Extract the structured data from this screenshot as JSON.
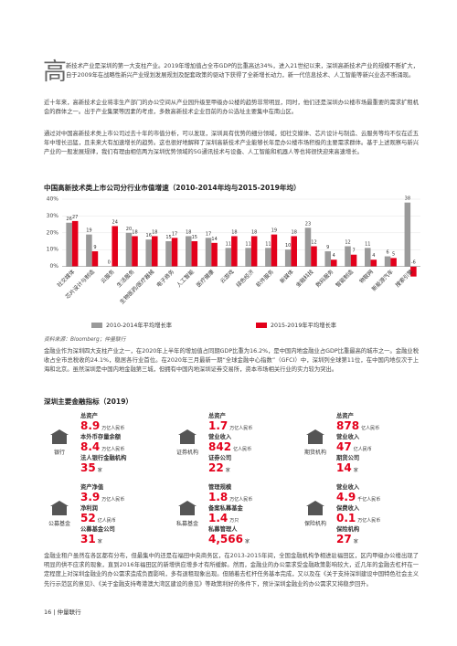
{
  "intro": {
    "drop_cap": "高",
    "paragraphs": [
      "新技术产业是深圳的第一大支柱产业。2019年增加值占全市GDP的比重高达34%，进入21世纪以来，深圳高新技术产业的规模不断扩大，自于2009年在战略性新兴产业规划发展规划及配套政策的驱动下获得了全新增长动力，新一代信息技术、人工智能等新兴业态不断涌现。",
      "近十年来，高新技术企业将非生产部门的办公空间从产业园升级至甲级办公楼的趋势非常明显，同时，他们还是深圳办公楼市场最重要的需求扩租机会的群体之一。出于产业集聚等因素的考虑，多数高新技术企业目前的办公选址主要集中在南山区。",
      "通过对中国高新技术类上市公司过去十年的市值分析，可以发现，深圳具有优势的细分领域，如社交媒体、芯片设计与制造、云服务等均不仅在近五年中增长迅猛，且未来大有加速增长的趋势。这也很好地解释了深圳高新技术产业能够长年是办公楼市场积极的主要需求群体。基于上述观察与新兴产业的一般发展规律，我们有理由相信两为深圳优势领域的5G通讯技术与设备、人工智能和机器人等也将很快迎来高速增长。"
    ]
  },
  "chart_data": {
    "type": "bar",
    "title": "中国高新技术类上市公司分行业市值增速（2010-2014年均与2015-2019年均）",
    "categories": [
      "社交媒体",
      "芯片设计与制造",
      "云服务",
      "生活服务",
      "生物医药/医疗器械",
      "电子商务",
      "人工智能",
      "医疗健康",
      "云游戏",
      "绿色经济",
      "软件服务",
      "新媒体",
      "金融科技",
      "数码服务",
      "智能制造",
      "物联网",
      "新能源汽车",
      "搜索引擎"
    ],
    "series": [
      {
        "name": "2010-2014年平均增长率",
        "color": "#9a9a9a",
        "values": [
          26,
          19,
          0,
          20,
          16,
          15,
          18,
          17,
          11,
          11,
          11,
          10,
          23,
          9,
          12,
          11,
          6,
          38
        ]
      },
      {
        "name": "2015-2019年平均增长率",
        "color": "#e3001b",
        "values": [
          27,
          9,
          24,
          18,
          18,
          17,
          15,
          14,
          18,
          18,
          19,
          18,
          12,
          4,
          7,
          4,
          5,
          -6
        ]
      }
    ],
    "ylim": [
      -10,
      40
    ],
    "yticks": [
      {
        "value": 0,
        "label": "0%"
      },
      {
        "value": 10,
        "label": "10%"
      },
      {
        "value": 20,
        "label": "20%"
      },
      {
        "value": 30,
        "label": "30%"
      },
      {
        "value": 40,
        "label": "40%"
      }
    ],
    "source": "资料来源：Bloomberg；仲量联行"
  },
  "after_chart": "金融业作为深圳四大支柱产业之一，在2020年上半年的增加值占同期GDP比重为16.2%，是中国内地金融业占GDP比重最高的城市之一。金融业税收占全市总税收的24.1%，稳居各行业首位。在2020年三月最新一期“全球金融中心指数”（GFCI）中，深圳列全球第11位，在中国内地仅次于上海和北京。虽然深圳是中国内地金融第三城，但拥有中国内地深圳证券交易所，资本市场相关行业的实力较为突出。",
  "finance": {
    "title": "深圳主要金融指标（2019）",
    "groups": [
      {
        "icon": "银行",
        "items": [
          {
            "label": "总资产",
            "value": "8.9",
            "unit": "万亿人民币"
          },
          {
            "label": "本外币存量余额",
            "value": "8.4",
            "unit": "万亿人民币"
          },
          {
            "label": "法人银行金融机构",
            "value": "35",
            "unit": "家"
          }
        ]
      },
      {
        "icon": "证券机构",
        "items": [
          {
            "label": "总资产",
            "value": "1.7",
            "unit": "万亿人民币"
          },
          {
            "label": "营业收入",
            "value": "842",
            "unit": "亿人民币"
          },
          {
            "label": "证券公司",
            "value": "22",
            "unit": "家"
          }
        ]
      },
      {
        "icon": "期货机构",
        "items": [
          {
            "label": "总资产",
            "value": "878",
            "unit": "亿人民币"
          },
          {
            "label": "营业收入",
            "value": "47",
            "unit": "亿人民币"
          },
          {
            "label": "期货公司",
            "value": "14",
            "unit": "家"
          }
        ]
      },
      {
        "icon": "公募基金",
        "items": [
          {
            "label": "资产净值",
            "value": "3.9",
            "unit": "万亿人民币"
          },
          {
            "label": "净利润",
            "value": "52",
            "unit": "亿人民币"
          },
          {
            "label": "公募基金公司",
            "value": "31",
            "unit": "家"
          }
        ]
      },
      {
        "icon": "私募基金",
        "items": [
          {
            "label": "管理规模",
            "value": "1.8",
            "unit": "万亿人民币"
          },
          {
            "label": "备案私募基金",
            "value": "1.4",
            "unit": "万只"
          },
          {
            "label": "私募管理人",
            "value": "4,566",
            "unit": "家"
          }
        ]
      },
      {
        "icon": "保险机构",
        "items": [
          {
            "label": "营业收入",
            "value": "4.9",
            "unit": "千亿人民币"
          },
          {
            "label": "保费收入",
            "value": "0.1",
            "unit": "万亿人民币"
          },
          {
            "label": "保险机构",
            "value": "27",
            "unit": "家"
          }
        ]
      }
    ]
  },
  "closing": "金融业租户虽然在各区都有分布，但最集中的还是在福田中央商务区，在2013-2015年间，全国金融机构争相进驻福田区，区内甲级办公楼出现了明显的供不应求的现象，直到2016年福田区的新增供应增多才有所缓解。然而，金融业的办公需求受金融政策影响较大，近几年的金融去杠杆在一定程度上对深圳金融业的办公需求造成负面影响，多有退租现象出现。但随着去杠杆任务基本完成，又以及在《关于支持深圳建设中国特色社会主义先行示范区的意见》、《关于金融支持粤港澳大湾区建设的意见》等政策利好的条件下，预计深圳金融业的办公需求又将稳步回升。",
  "footer": "16 | 仲量联行"
}
